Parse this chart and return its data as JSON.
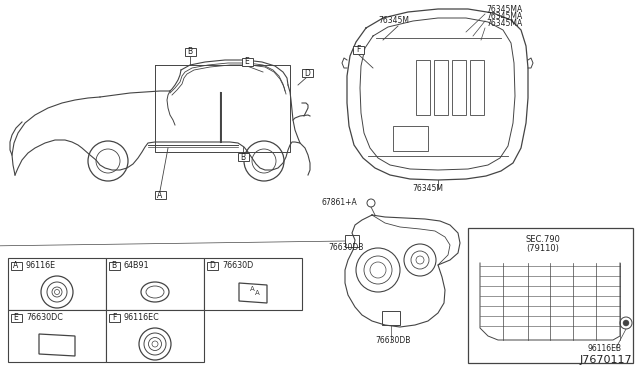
{
  "diagram_number": "J7670117",
  "bg_color": "#ffffff",
  "line_color": "#444444",
  "text_color": "#222222",
  "parts_row1": [
    {
      "key": "A",
      "part": "96116E"
    },
    {
      "key": "B",
      "part": "64B91"
    },
    {
      "key": "D",
      "part": "76630D"
    }
  ],
  "parts_row2": [
    {
      "key": "E",
      "part": "76630DC"
    },
    {
      "key": "F",
      "part": "96116EC"
    }
  ],
  "top_view_labels": {
    "left": "76345M",
    "right1": "76345MA",
    "right2": "76345MA",
    "right3": "76345MA",
    "bottom": "76345M",
    "f_label": "F"
  },
  "trunk_labels": {
    "bolt_label": "67861+A",
    "top_label": "76630DB",
    "bottom_label": "76630DB"
  },
  "sec_label": "SEC.790",
  "sec_sub": "(79110)",
  "sec_part": "96116EB"
}
